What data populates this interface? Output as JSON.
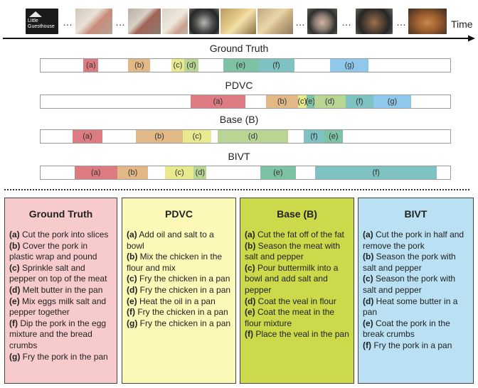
{
  "filmstrip": {
    "logo_text": "Little Guesthouse",
    "ellipsis": "…",
    "time_label": "Time"
  },
  "colors": {
    "a": "#dd7b82",
    "b": "#e2b887",
    "c": "#e9e98d",
    "d": "#b9d594",
    "e": "#7dc2a4",
    "f": "#7ec3c2",
    "g": "#8fc8ea",
    "ground_truth_panel": "#f7cbcb",
    "pdvc_panel": "#fcf8b8",
    "base_panel": "#ccd94a",
    "bivt_panel": "#b9e0f3"
  },
  "timelines": [
    {
      "title": "Ground Truth",
      "segments": [
        {
          "label": "(a)",
          "key": "a",
          "start": 0.105,
          "end": 0.141
        },
        {
          "label": "(b)",
          "key": "b",
          "start": 0.214,
          "end": 0.268
        },
        {
          "label": "(c)",
          "key": "c",
          "start": 0.32,
          "end": 0.35
        },
        {
          "label": "(d)",
          "key": "d",
          "start": 0.35,
          "end": 0.386
        },
        {
          "label": "(e)",
          "key": "e",
          "start": 0.446,
          "end": 0.531
        },
        {
          "label": "(f)",
          "key": "f",
          "start": 0.531,
          "end": 0.62
        },
        {
          "label": "(g)",
          "key": "g",
          "start": 0.707,
          "end": 0.801
        }
      ]
    },
    {
      "title": "PDVC",
      "segments": [
        {
          "label": "(a)",
          "key": "a",
          "start": 0.366,
          "end": 0.5
        },
        {
          "label": "(b)",
          "key": "b",
          "start": 0.551,
          "end": 0.628
        },
        {
          "label": "(c)",
          "key": "c",
          "start": 0.628,
          "end": 0.649
        },
        {
          "label": "(e)",
          "key": "e",
          "start": 0.649,
          "end": 0.668
        },
        {
          "label": "(d)",
          "key": "d",
          "start": 0.668,
          "end": 0.744
        },
        {
          "label": "(f)",
          "key": "f",
          "start": 0.744,
          "end": 0.813
        },
        {
          "label": "(g)",
          "key": "g",
          "start": 0.813,
          "end": 0.904
        }
      ]
    },
    {
      "title": "Base (B)",
      "segments": [
        {
          "label": "(a)",
          "key": "a",
          "start": 0.078,
          "end": 0.151
        },
        {
          "label": "(b)",
          "key": "b",
          "start": 0.233,
          "end": 0.347
        },
        {
          "label": "(c)",
          "key": "c",
          "start": 0.347,
          "end": 0.417
        },
        {
          "label": "(d)",
          "key": "d",
          "start": 0.432,
          "end": 0.605
        },
        {
          "label": "(f)",
          "key": "f",
          "start": 0.642,
          "end": 0.693
        },
        {
          "label": "(e)",
          "key": "e",
          "start": 0.693,
          "end": 0.737
        }
      ]
    },
    {
      "title": "BIVT",
      "segments": [
        {
          "label": "(a)",
          "key": "a",
          "start": 0.083,
          "end": 0.187
        },
        {
          "label": "(b)",
          "key": "b",
          "start": 0.187,
          "end": 0.263
        },
        {
          "label": "(c)",
          "key": "c",
          "start": 0.304,
          "end": 0.374
        },
        {
          "label": "(d)",
          "key": "d",
          "start": 0.374,
          "end": 0.405
        },
        {
          "label": "(e)",
          "key": "e",
          "start": 0.536,
          "end": 0.623
        },
        {
          "label": "(f)",
          "key": "f",
          "start": 0.671,
          "end": 0.967
        }
      ]
    }
  ],
  "panels": [
    {
      "title": "Ground Truth",
      "color_key": "ground_truth_panel",
      "items": [
        {
          "tag": "(a)",
          "text": " Cut the pork into slices"
        },
        {
          "tag": "(b)",
          "text": " Cover the pork in plastic wrap and pound"
        },
        {
          "tag": "(c)",
          "text": " Sprinkle salt and pepper on top of the meat"
        },
        {
          "tag": "(d)",
          "text": " Melt butter in the pan"
        },
        {
          "tag": "(e)",
          "text": " Mix eggs milk salt and pepper together"
        },
        {
          "tag": "(f)",
          "text": " Dip the pork in the egg mixture and the bread crumbs"
        },
        {
          "tag": "(g)",
          "text": " Fry the pork in the pan"
        }
      ]
    },
    {
      "title": "PDVC",
      "color_key": "pdvc_panel",
      "items": [
        {
          "tag": "(a)",
          "text": " Add oil and salt to a bowl"
        },
        {
          "tag": "(b)",
          "text": " Mix the chicken in the flour and mix"
        },
        {
          "tag": "(c)",
          "text": " Fry the chicken in a pan"
        },
        {
          "tag": "(d)",
          "text": " Fry the chicken in a pan"
        },
        {
          "tag": "(e)",
          "text": " Heat the oil in a pan"
        },
        {
          "tag": "(f)",
          "text": " Fry the chicken in a pan"
        },
        {
          "tag": "(g)",
          "text": " Fry the chicken in a pan"
        }
      ]
    },
    {
      "title": "Base (B)",
      "color_key": "base_panel",
      "items": [
        {
          "tag": "(a)",
          "text": " Cut the fat off of the fat"
        },
        {
          "tag": "(b)",
          "text": " Season the meat with salt and pepper"
        },
        {
          "tag": "(c)",
          "text": " Pour buttermilk into a bowl and add salt and pepper"
        },
        {
          "tag": "(d)",
          "text": " Coat the veal in flour"
        },
        {
          "tag": "(e)",
          "text": " Coat the meat in the flour mixture"
        },
        {
          "tag": "(f)",
          "text": " Place the veal in the pan"
        }
      ]
    },
    {
      "title": "BIVT",
      "color_key": "bivt_panel",
      "items": [
        {
          "tag": "(a)",
          "text": " Cut the pork in half and remove the pork"
        },
        {
          "tag": "(b)",
          "text": " Season the pork with salt and pepper"
        },
        {
          "tag": "(c)",
          "text": " Season the pork with salt and pepper"
        },
        {
          "tag": "(d)",
          "text": " Heat some butter in a pan"
        },
        {
          "tag": "(e)",
          "text": " Coat the pork in the break crumbs"
        },
        {
          "tag": "(f)",
          "text": " Fry the pork in a pan"
        }
      ]
    }
  ]
}
